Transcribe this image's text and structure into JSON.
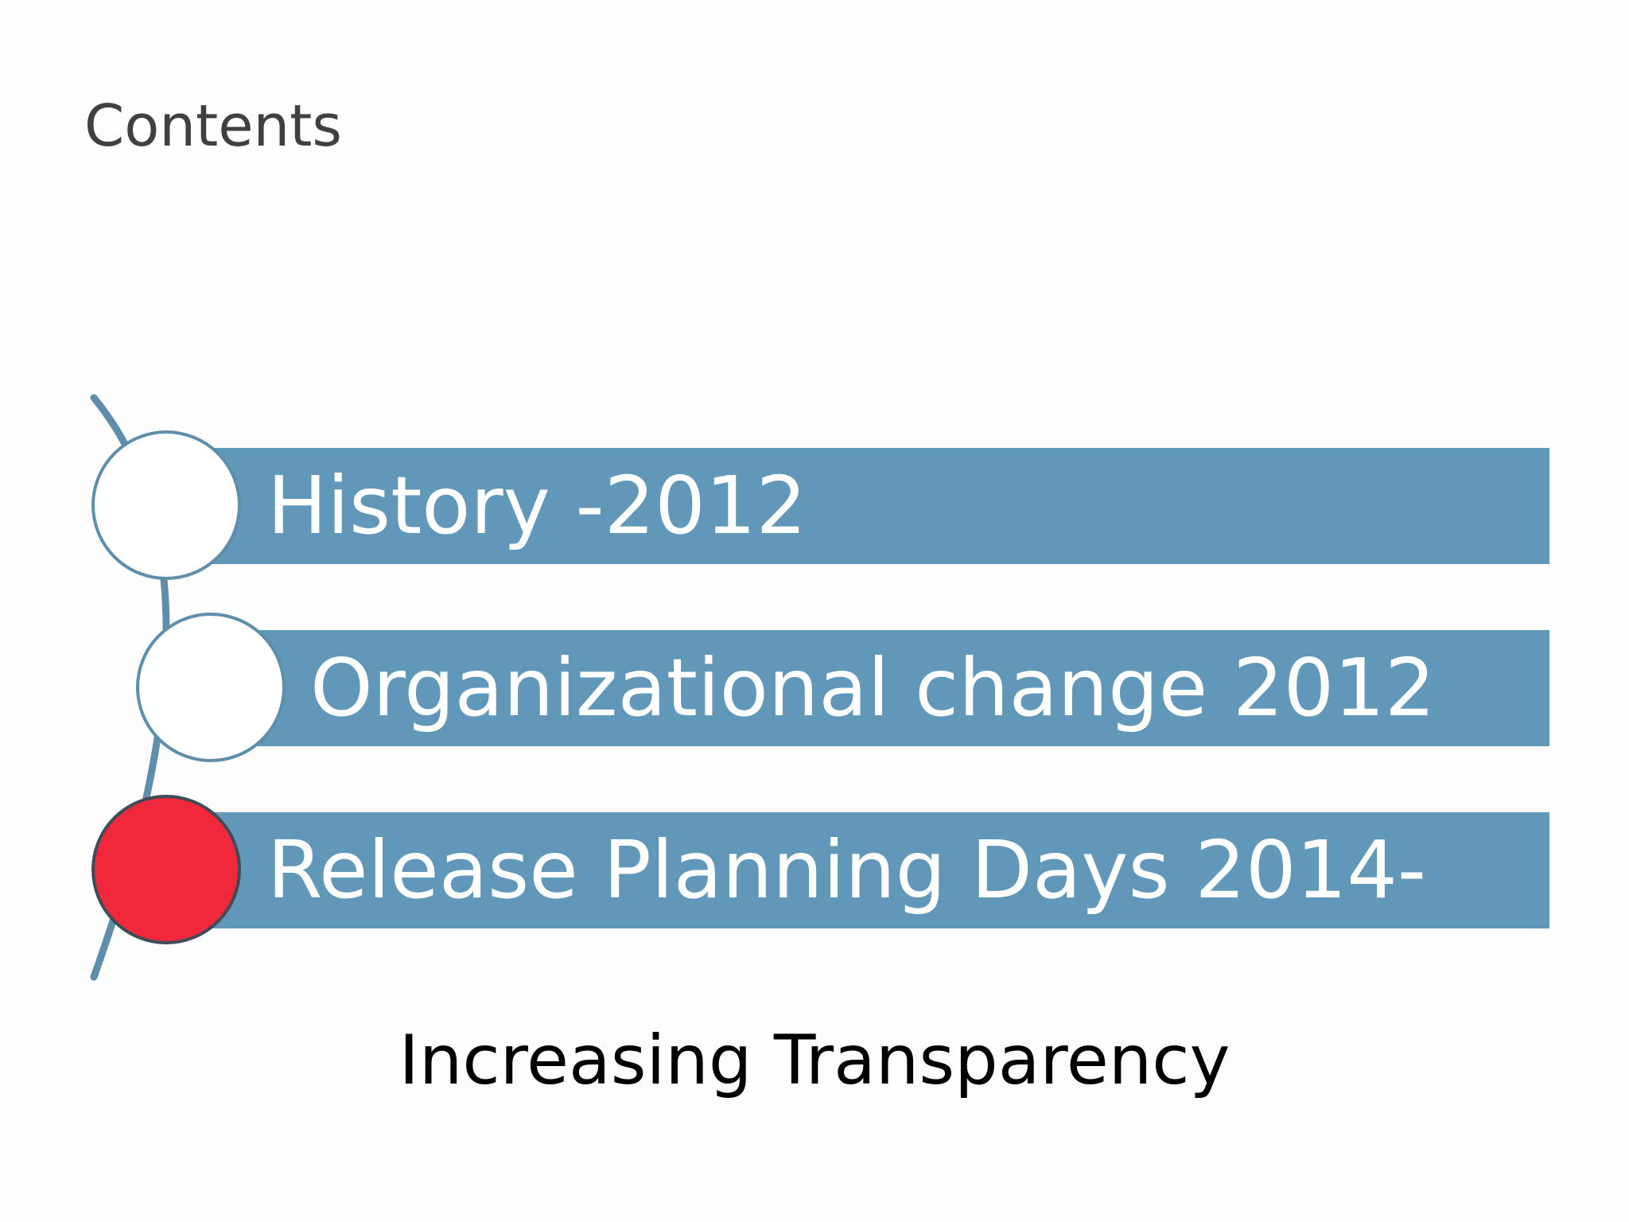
{
  "slide": {
    "title": "Contents",
    "items": [
      {
        "label": "History -2012",
        "state": "inactive"
      },
      {
        "label": "Organizational change 2012",
        "state": "inactive"
      },
      {
        "label": "Release Planning Days 2014-",
        "state": "active"
      }
    ],
    "caption": "Increasing Transparency"
  },
  "colors": {
    "bar": "#6198b9",
    "bar_text": "#ffffff",
    "active_bullet": "#f1283b",
    "inactive_bullet": "#ffffff",
    "bullet_outline": "#5e8eac",
    "arc": "#5e8eac",
    "title_text": "#404040",
    "caption_text": "#000000"
  }
}
